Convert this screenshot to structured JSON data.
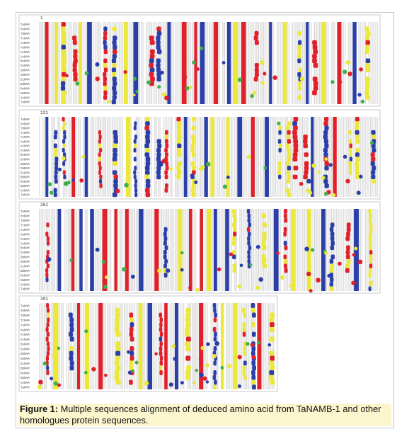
{
  "figure": {
    "caption_label": "Figure 1:",
    "caption_text": " Multiple sequences alignment of deduced amino acid from TaNAMB-1 and other homologues protein sequences."
  },
  "alignment": {
    "sequence_names": [
      "TaNAM",
      "HvNAM",
      "TdNAM",
      "TtNAM",
      "AsNAM",
      "AeNAM",
      "AtNAM",
      "AcNAM",
      "BvNAM",
      "OsNAM",
      "ZmNAM",
      "SbNAM",
      "SiNAM",
      "BdNAM",
      "MsNAM",
      "GmNAM",
      "VvNAM",
      "TaNAM"
    ],
    "panels": [
      {
        "start_label": "1",
        "width": 510
      },
      {
        "start_label": "131",
        "width": 510
      },
      {
        "start_label": "261",
        "width": 510
      },
      {
        "start_label": "391",
        "width": 365
      }
    ],
    "colors": {
      "red": "#e0202a",
      "blue": "#2b3fa8",
      "yellow": "#ece83a",
      "green": "#3fb04a",
      "grey": "#9a9a9a",
      "panel_border": "#c9c9c9",
      "caption_bg": "#fcf6cf"
    }
  }
}
